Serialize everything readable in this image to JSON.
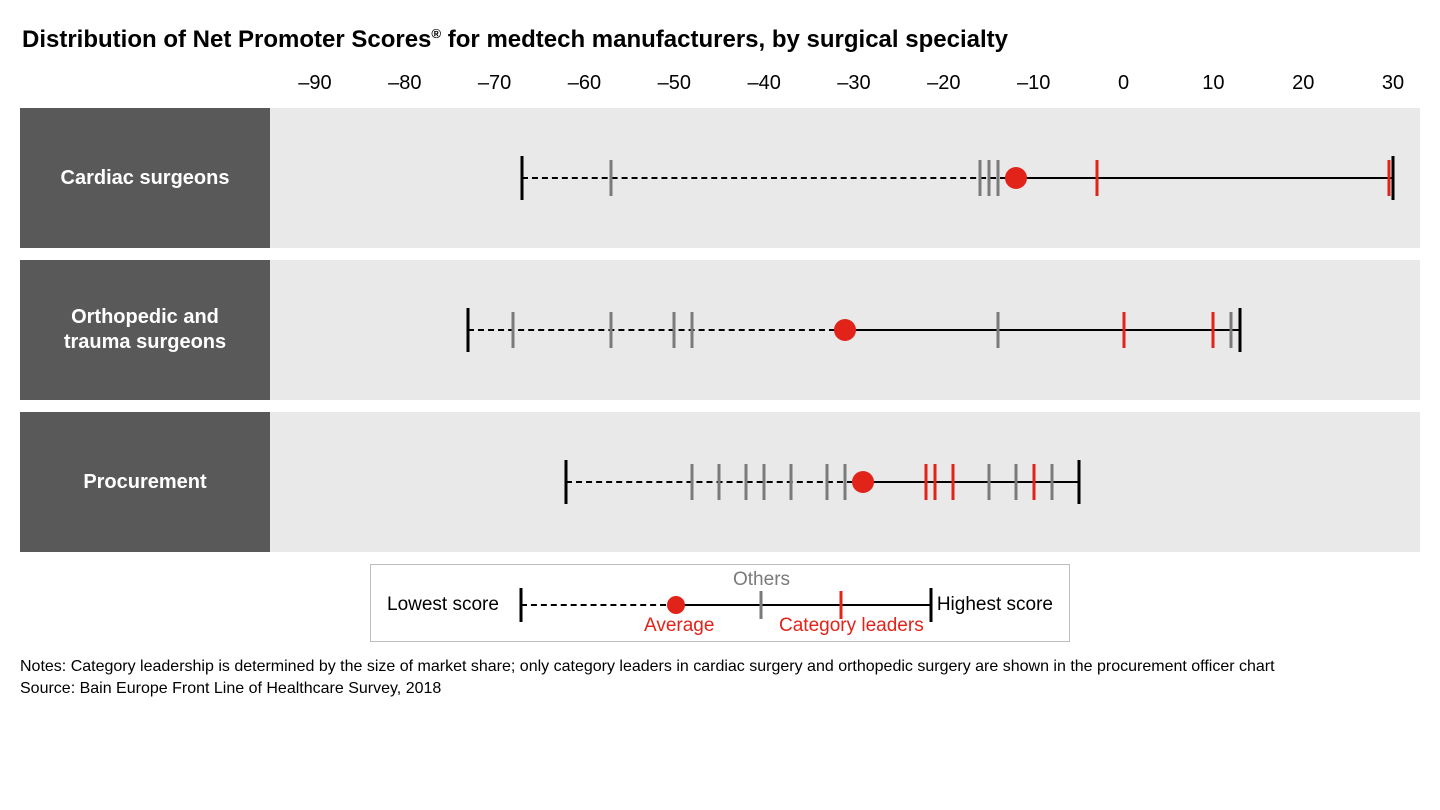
{
  "title_pre": "Distribution of Net Promoter Scores",
  "title_sup": "®",
  "title_post": " for medtech manufacturers, by surgical specialty",
  "axis": {
    "min": -95,
    "max": 33,
    "ticks": [
      -90,
      -80,
      -70,
      -60,
      -50,
      -40,
      -30,
      -20,
      -10,
      0,
      10,
      20,
      30
    ],
    "tick_labels": [
      "–90",
      "–80",
      "–70",
      "–60",
      "–50",
      "–40",
      "–30",
      "–20",
      "–10",
      "0",
      "10",
      "20",
      "30"
    ],
    "tick_fontsize": 20
  },
  "colors": {
    "row_label_bg": "#595959",
    "row_label_text": "#ffffff",
    "plot_bg": "#e9e9e9",
    "end_tick": "#000000",
    "other_tick": "#7a7a7a",
    "leader_tick": "#e2231a",
    "avg_dot": "#e2231a",
    "legend_border": "#bdbdbd"
  },
  "rows": [
    {
      "label": "Cardiac surgeons",
      "low": -67,
      "high": 30,
      "avg": -12,
      "others": [
        -57,
        -16,
        -15,
        -14
      ],
      "leaders": [
        -3,
        29.5
      ]
    },
    {
      "label": "Orthopedic and trauma surgeons",
      "low": -73,
      "high": 13,
      "avg": -31,
      "others": [
        -68,
        -57,
        -50,
        -48,
        -14,
        12
      ],
      "leaders": [
        0,
        10
      ]
    },
    {
      "label": "Procurement",
      "low": -62,
      "high": -5,
      "avg": -29,
      "others": [
        -48,
        -45,
        -42,
        -40,
        -37,
        -33,
        -31,
        -15,
        -12,
        -8
      ],
      "leaders": [
        -22,
        -21,
        -19,
        -10
      ]
    }
  ],
  "legend": {
    "lowest": "Lowest score",
    "highest": "Highest score",
    "others": "Others",
    "average": "Average",
    "category_leaders": "Category leaders"
  },
  "notes_line1": "Notes: Category leadership is determined by the size of market share; only category leaders in cardiac surgery and orthopedic surgery are shown in the procurement officer chart",
  "notes_line2": "Source: Bain Europe Front Line of Healthcare Survey, 2018"
}
